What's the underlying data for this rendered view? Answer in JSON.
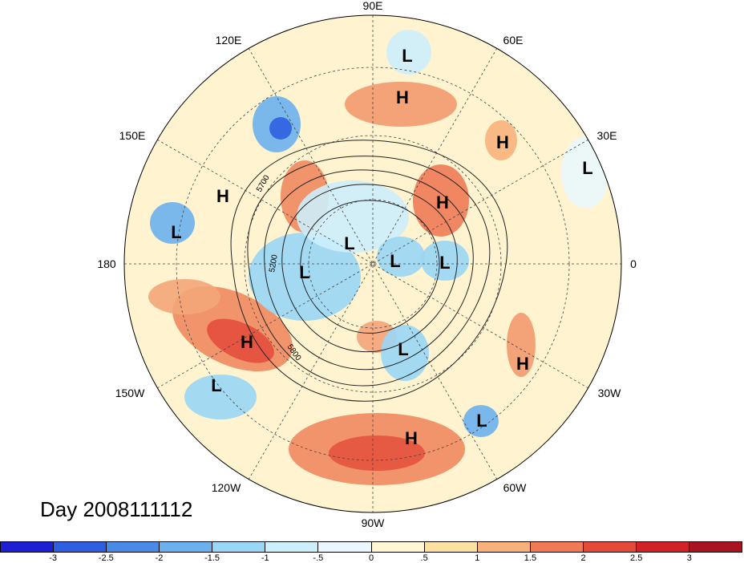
{
  "map": {
    "projection": "north polar stereographic",
    "longitude_labels": [
      "90E",
      "60E",
      "30E",
      "0",
      "30W",
      "60W",
      "90W",
      "120W",
      "150W",
      "180",
      "150E",
      "120E"
    ],
    "contour_labels": [
      "5700",
      "5200",
      "5800"
    ],
    "pressure_systems": [
      {
        "type": "L"
      },
      {
        "type": "H"
      },
      {
        "type": "H"
      },
      {
        "type": "L"
      },
      {
        "type": "H"
      },
      {
        "type": "H"
      },
      {
        "type": "L"
      },
      {
        "type": "L"
      },
      {
        "type": "L"
      },
      {
        "type": "L"
      },
      {
        "type": "L"
      },
      {
        "type": "H"
      },
      {
        "type": "L"
      },
      {
        "type": "H"
      },
      {
        "type": "L"
      },
      {
        "type": "L"
      },
      {
        "type": "H"
      }
    ]
  },
  "date_label": "Day 2008111112",
  "colorbar": {
    "colors": [
      "#1e1ed2",
      "#2f5fe0",
      "#4a8ae6",
      "#6bb1ee",
      "#9ad6f5",
      "#cdeefb",
      "#eaf7fc",
      "#fff6d5",
      "#fbe0a2",
      "#f7b27c",
      "#ef7a55",
      "#e44a3a",
      "#cf2327",
      "#a8141f"
    ],
    "tick_labels": [
      "-3",
      "-2.5",
      "-2",
      "-1.5",
      "-1",
      "-.5",
      "0",
      ".5",
      "1",
      "1.5",
      "2",
      "2.5",
      "3"
    ]
  }
}
